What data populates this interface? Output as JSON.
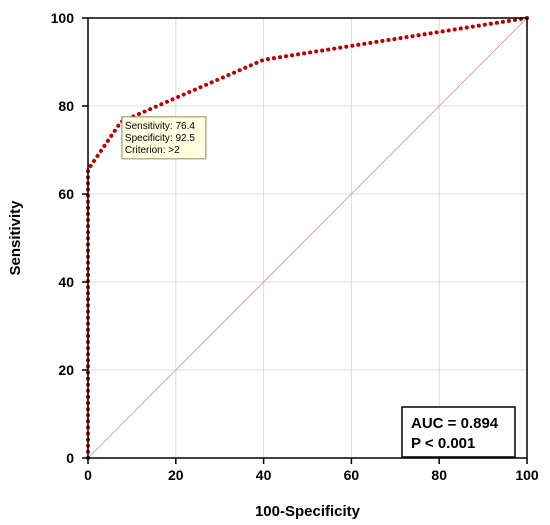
{
  "chart_data": {
    "type": "line",
    "xlabel": "100-Specificity",
    "ylabel": "Sensitivity",
    "xlim": [
      0,
      100
    ],
    "ylim": [
      0,
      100
    ],
    "x_ticks": [
      0,
      20,
      40,
      60,
      80,
      100
    ],
    "y_ticks": [
      0,
      20,
      40,
      60,
      80,
      100
    ],
    "grid": true,
    "series": [
      {
        "style": "dotted",
        "color": "#c00000",
        "x": [
          0,
          0,
          7.5,
          40,
          100
        ],
        "y": [
          0,
          65.5,
          76.4,
          90.5,
          100
        ]
      },
      {
        "style": "reference-diagonal",
        "color": "#d9a89f",
        "x": [
          0,
          100
        ],
        "y": [
          0,
          100
        ]
      }
    ],
    "annotation": {
      "lines": [
        "Sensitivity: 76.4",
        "Specificity: 92.5",
        "Criterion: >2"
      ],
      "x": 7.5,
      "y": 76.4
    },
    "stats_box": {
      "lines": [
        "AUC = 0.894",
        "P < 0.001"
      ]
    }
  }
}
